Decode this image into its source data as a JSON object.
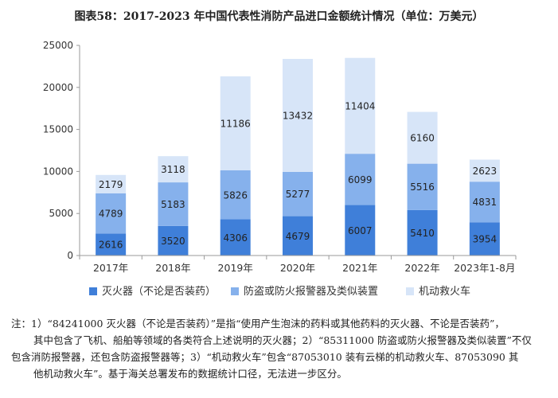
{
  "chart_data": {
    "type": "bar",
    "stacked": true,
    "title": "图表58：2017-2023 年中国代表性消防产品进口金额统计情况（单位：万美元）",
    "categories": [
      "2017年",
      "2018年",
      "2019年",
      "2020年",
      "2021年",
      "2022年",
      "2023年1-8月"
    ],
    "ylim": [
      0,
      25000
    ],
    "yticks": [
      0,
      5000,
      10000,
      15000,
      20000,
      25000
    ],
    "grid": false,
    "legend_position": "bottom",
    "series": [
      {
        "name": "灭火器（不论是否装药）",
        "color": "#3f7fd9",
        "values": [
          2616,
          3520,
          4306,
          4679,
          6007,
          5410,
          3954
        ]
      },
      {
        "name": "防盗或防火报警器及类似装置",
        "color": "#86b1ec",
        "values": [
          4789,
          5183,
          5826,
          5277,
          6099,
          5516,
          4831
        ]
      },
      {
        "name": "机动救火车",
        "color": "#d7e5f8",
        "values": [
          2179,
          3118,
          11186,
          13432,
          11404,
          6160,
          2623
        ]
      }
    ]
  },
  "note": {
    "lines": [
      "注：1）“84241000 灭火器（不论是否装药）”是指“使用产生泡沫的药料或其他药料的灭火器、不论是否装药”，",
      "其中包含了飞机、船舶等领域的各类符合上述说明的灭火器；2）“85311000 防盗或防火报警器及类似装置”不仅",
      "包含消防报警器，还包含防盗报警器等；3）“机动救火车”包含“87053010 装有云梯的机动救火车、87053090 其",
      "他机动救火车”。基于海关总署发布的数据统计口径，无法进一步区分。"
    ]
  }
}
